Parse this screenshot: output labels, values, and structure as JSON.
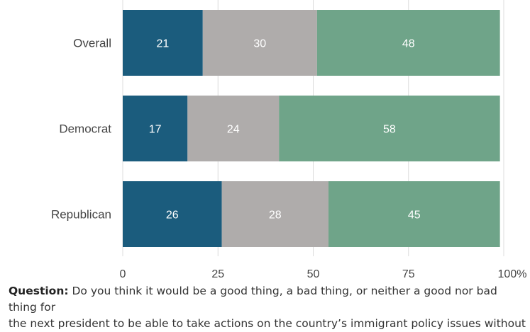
{
  "chart_data": {
    "type": "bar",
    "orientation": "horizontal",
    "stacked": true,
    "categories": [
      "Overall",
      "Democrat",
      "Republican"
    ],
    "series": [
      {
        "values": [
          21,
          17,
          26
        ],
        "color": "#1b5c7d"
      },
      {
        "values": [
          30,
          24,
          28
        ],
        "color": "#afacab"
      },
      {
        "values": [
          48,
          58,
          45
        ],
        "color": "#6fa489"
      }
    ],
    "xticks": [
      "0",
      "25",
      "50",
      "75",
      "100%"
    ],
    "xlim": [
      0,
      100
    ],
    "grid": true,
    "legend": false
  },
  "footer": {
    "label": "Question:",
    "text": " Do you think it would be a good thing, a bad thing, or neither a good nor bad thing for",
    "text_cont": "the next president to be able to take actions on the country’s immigrant policy issues without"
  }
}
